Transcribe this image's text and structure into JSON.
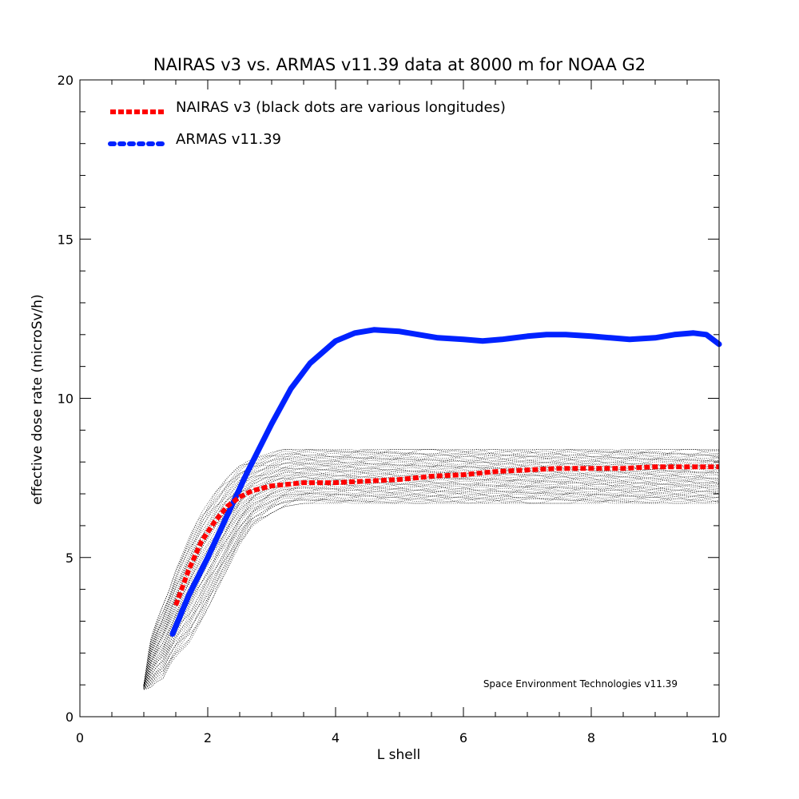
{
  "chart_data": {
    "type": "line",
    "title": "NAIRAS  v3 vs. ARMAS v11.39 data at 8000 m for NOAA G2",
    "xlabel": "L shell",
    "ylabel": "effective dose rate (microSv/h)",
    "xlim": [
      0,
      10
    ],
    "ylim": [
      0,
      20
    ],
    "x_ticks": [
      "0",
      "2",
      "4",
      "6",
      "8",
      "10"
    ],
    "y_ticks": [
      "0",
      "5",
      "10",
      "15",
      "20"
    ],
    "grid": false,
    "legend_position": "top-left",
    "credit": "Space Environment Technologies v11.39",
    "series": [
      {
        "name": "NAIRAS v3 (black dots are various longitudes)",
        "color": "#ff0000",
        "style": "dotted",
        "x": [
          1.5,
          1.7,
          1.9,
          2.1,
          2.3,
          2.5,
          2.7,
          3.0,
          3.5,
          4.0,
          4.5,
          5.0,
          5.5,
          6.0,
          6.5,
          7.0,
          7.5,
          8.0,
          8.5,
          9.0,
          9.5,
          10.0
        ],
        "y": [
          3.5,
          4.6,
          5.5,
          6.1,
          6.6,
          6.9,
          7.1,
          7.25,
          7.35,
          7.35,
          7.4,
          7.45,
          7.55,
          7.6,
          7.7,
          7.75,
          7.8,
          7.8,
          7.8,
          7.85,
          7.85,
          7.85
        ]
      },
      {
        "name": "ARMAS v11.39",
        "color": "#0022ff",
        "style": "solid-thick",
        "x": [
          1.45,
          1.7,
          2.0,
          2.3,
          2.6,
          3.0,
          3.3,
          3.6,
          4.0,
          4.3,
          4.6,
          5.0,
          5.3,
          5.6,
          6.0,
          6.3,
          6.6,
          7.0,
          7.3,
          7.6,
          8.0,
          8.3,
          8.6,
          9.0,
          9.3,
          9.6,
          9.8,
          10.0
        ],
        "y": [
          2.6,
          3.8,
          5.0,
          6.3,
          7.6,
          9.2,
          10.3,
          11.1,
          11.8,
          12.05,
          12.15,
          12.1,
          12.0,
          11.9,
          11.85,
          11.8,
          11.85,
          11.95,
          12.0,
          12.0,
          11.95,
          11.9,
          11.85,
          11.9,
          12.0,
          12.05,
          12.0,
          11.7
        ]
      },
      {
        "name": "",
        "color": "#000000",
        "style": "dots",
        "x": [
          1.0,
          1.1,
          1.2,
          1.3,
          1.4,
          1.5,
          1.7,
          1.9,
          2.1,
          2.3,
          2.5,
          2.7,
          3.0,
          3.2,
          3.5,
          4.0,
          5.0,
          6.0,
          7.0,
          8.0,
          9.0,
          10.0
        ],
        "y_max": [
          1.0,
          2.4,
          3.0,
          3.5,
          4.0,
          4.6,
          5.6,
          6.4,
          7.0,
          7.5,
          7.9,
          8.1,
          8.3,
          8.4,
          8.4,
          8.4,
          8.4,
          8.4,
          8.4,
          8.4,
          8.4,
          8.4
        ],
        "y_min": [
          0.85,
          0.9,
          1.1,
          1.2,
          1.6,
          1.9,
          2.3,
          3.0,
          3.8,
          4.6,
          5.4,
          6.0,
          6.4,
          6.6,
          6.7,
          6.7,
          6.7,
          6.7,
          6.7,
          6.7,
          6.7,
          6.7
        ]
      }
    ]
  }
}
